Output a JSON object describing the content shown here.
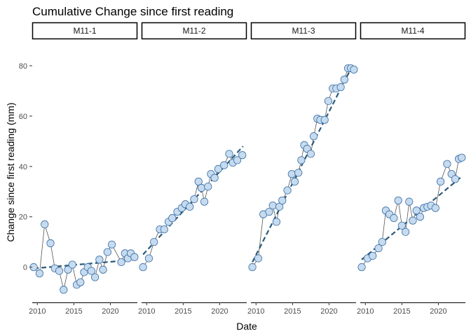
{
  "chart_data": {
    "type": "scatter",
    "title": "Cumulative Change since first reading",
    "xlabel": "Date",
    "ylabel": "Change since first reading (mm)",
    "xlim": [
      2009.3,
      2023.7
    ],
    "ylim": [
      -14,
      90
    ],
    "x_ticks": [
      2010,
      2015,
      2020
    ],
    "y_ticks": [
      0,
      20,
      40,
      60,
      80
    ],
    "grid": false,
    "legend": "none",
    "colors": {
      "point_fill": "#c6dbef",
      "point_stroke": "#3a6ea5",
      "line": "#555555",
      "trend": "#2b5a7a",
      "strip_border": "#000000"
    },
    "facets": [
      {
        "name": "M11-1",
        "x": [
          2009.5,
          2010.3,
          2011.0,
          2011.8,
          2012.4,
          2013.0,
          2013.6,
          2014.2,
          2014.8,
          2015.4,
          2015.9,
          2016.4,
          2016.9,
          2017.4,
          2017.9,
          2018.5,
          2019.0,
          2019.6,
          2020.2,
          2021.5,
          2022.0,
          2022.4,
          2022.8,
          2023.3
        ],
        "values": [
          0,
          -2.5,
          17,
          9.5,
          -0.5,
          -1.5,
          -9,
          -1,
          1,
          -7,
          -6,
          -2,
          0,
          -1.5,
          -4,
          3,
          -1,
          6,
          9,
          2,
          5.5,
          3.5,
          5.5,
          4
        ],
        "trend": [
          [
            2009.5,
            -0.5
          ],
          [
            2021.5,
            2.5
          ]
        ]
      },
      {
        "name": "M11-2",
        "x": [
          2009.5,
          2010.3,
          2011.0,
          2011.8,
          2012.4,
          2013.0,
          2013.5,
          2014.2,
          2014.8,
          2015.3,
          2015.9,
          2016.5,
          2017.1,
          2017.5,
          2017.9,
          2018.4,
          2018.8,
          2019.3,
          2019.8,
          2020.6,
          2021.3,
          2021.8,
          2022.4,
          2023.1
        ],
        "values": [
          0,
          3.5,
          10,
          15,
          15,
          18,
          19.5,
          22,
          23.5,
          25,
          24,
          27,
          34,
          31.5,
          26,
          32,
          37,
          35.5,
          39,
          40.5,
          45,
          41.5,
          42.5,
          44.5
        ],
        "trend": [
          [
            2009.5,
            5
          ],
          [
            2023.2,
            48
          ]
        ]
      },
      {
        "name": "M11-3",
        "x": [
          2009.5,
          2010.3,
          2011.0,
          2011.8,
          2012.3,
          2012.8,
          2013.2,
          2013.6,
          2014.3,
          2014.9,
          2015.3,
          2015.8,
          2016.2,
          2016.6,
          2017.0,
          2017.5,
          2017.9,
          2018.4,
          2018.8,
          2019.4,
          2019.9,
          2020.5,
          2021.0,
          2021.6,
          2022.1,
          2022.6,
          2023.0,
          2023.4
        ],
        "values": [
          0,
          3.5,
          21,
          22,
          24.5,
          18,
          24,
          26.5,
          30.5,
          37,
          34,
          37.5,
          42.5,
          48.5,
          47,
          45,
          52,
          59,
          58.5,
          58.5,
          66,
          71,
          71,
          71.5,
          74.5,
          79,
          79,
          78.5
        ],
        "trend": [
          [
            2009.5,
            2
          ],
          [
            2023.2,
            80
          ]
        ]
      },
      {
        "name": "M11-4",
        "x": [
          2009.5,
          2010.3,
          2011.0,
          2011.8,
          2012.3,
          2012.8,
          2013.3,
          2013.9,
          2014.5,
          2015.0,
          2015.5,
          2016.0,
          2016.5,
          2017.0,
          2017.5,
          2018.0,
          2018.5,
          2019.0,
          2019.6,
          2020.3,
          2021.2,
          2021.8,
          2022.3,
          2022.8,
          2023.2
        ],
        "values": [
          0,
          3.5,
          4.5,
          7.5,
          10,
          22.5,
          21,
          19.5,
          26.5,
          16.5,
          14,
          26,
          18.5,
          22.5,
          20,
          23.5,
          24,
          24.5,
          23.5,
          34,
          41,
          37,
          35,
          43,
          43.5
        ],
        "trend": [
          [
            2009.5,
            3
          ],
          [
            2023.2,
            36
          ]
        ]
      }
    ]
  }
}
